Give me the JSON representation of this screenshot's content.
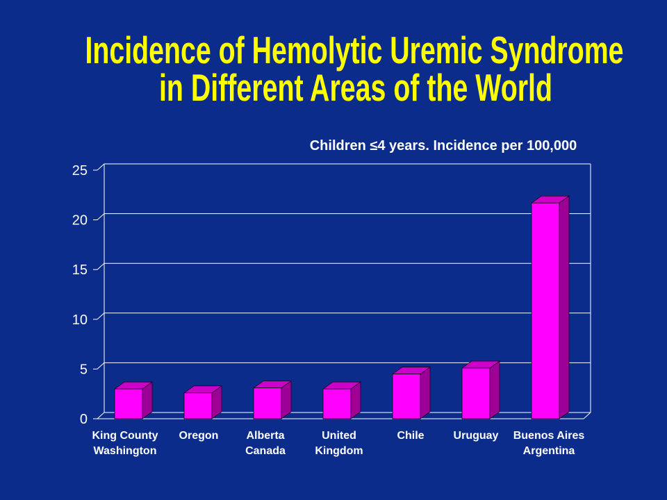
{
  "slide": {
    "title_line1": "Incidence of Hemolytic Uremic Syndrome",
    "title_line2": "in Different Areas of the World"
  },
  "colors": {
    "background": "#0c2c8c",
    "title": "#ffff00",
    "text": "#ffffff",
    "grid": "#ffffff",
    "bar_front": "#ff00ff",
    "bar_side": "#9c0096",
    "bar_top": "#cc00c8",
    "bar_outline": "#1a0020"
  },
  "chart_data": {
    "type": "bar",
    "style": "3d-column",
    "title": "Children ≤4 years. Incidence per 100,000",
    "xlabel": "",
    "ylabel": "",
    "categories": [
      "King County\nWashington",
      "Oregon",
      "Alberta\nCanada",
      "United\nKingdom",
      "Chile",
      "Uruguay",
      "Buenos Aires\nArgentina"
    ],
    "values": [
      3.0,
      2.6,
      3.1,
      3.0,
      4.5,
      5.1,
      21.7
    ],
    "ylim": [
      0,
      25
    ],
    "yticks": [
      0,
      5,
      10,
      15,
      20,
      25
    ],
    "grid": true,
    "legend": "none"
  }
}
